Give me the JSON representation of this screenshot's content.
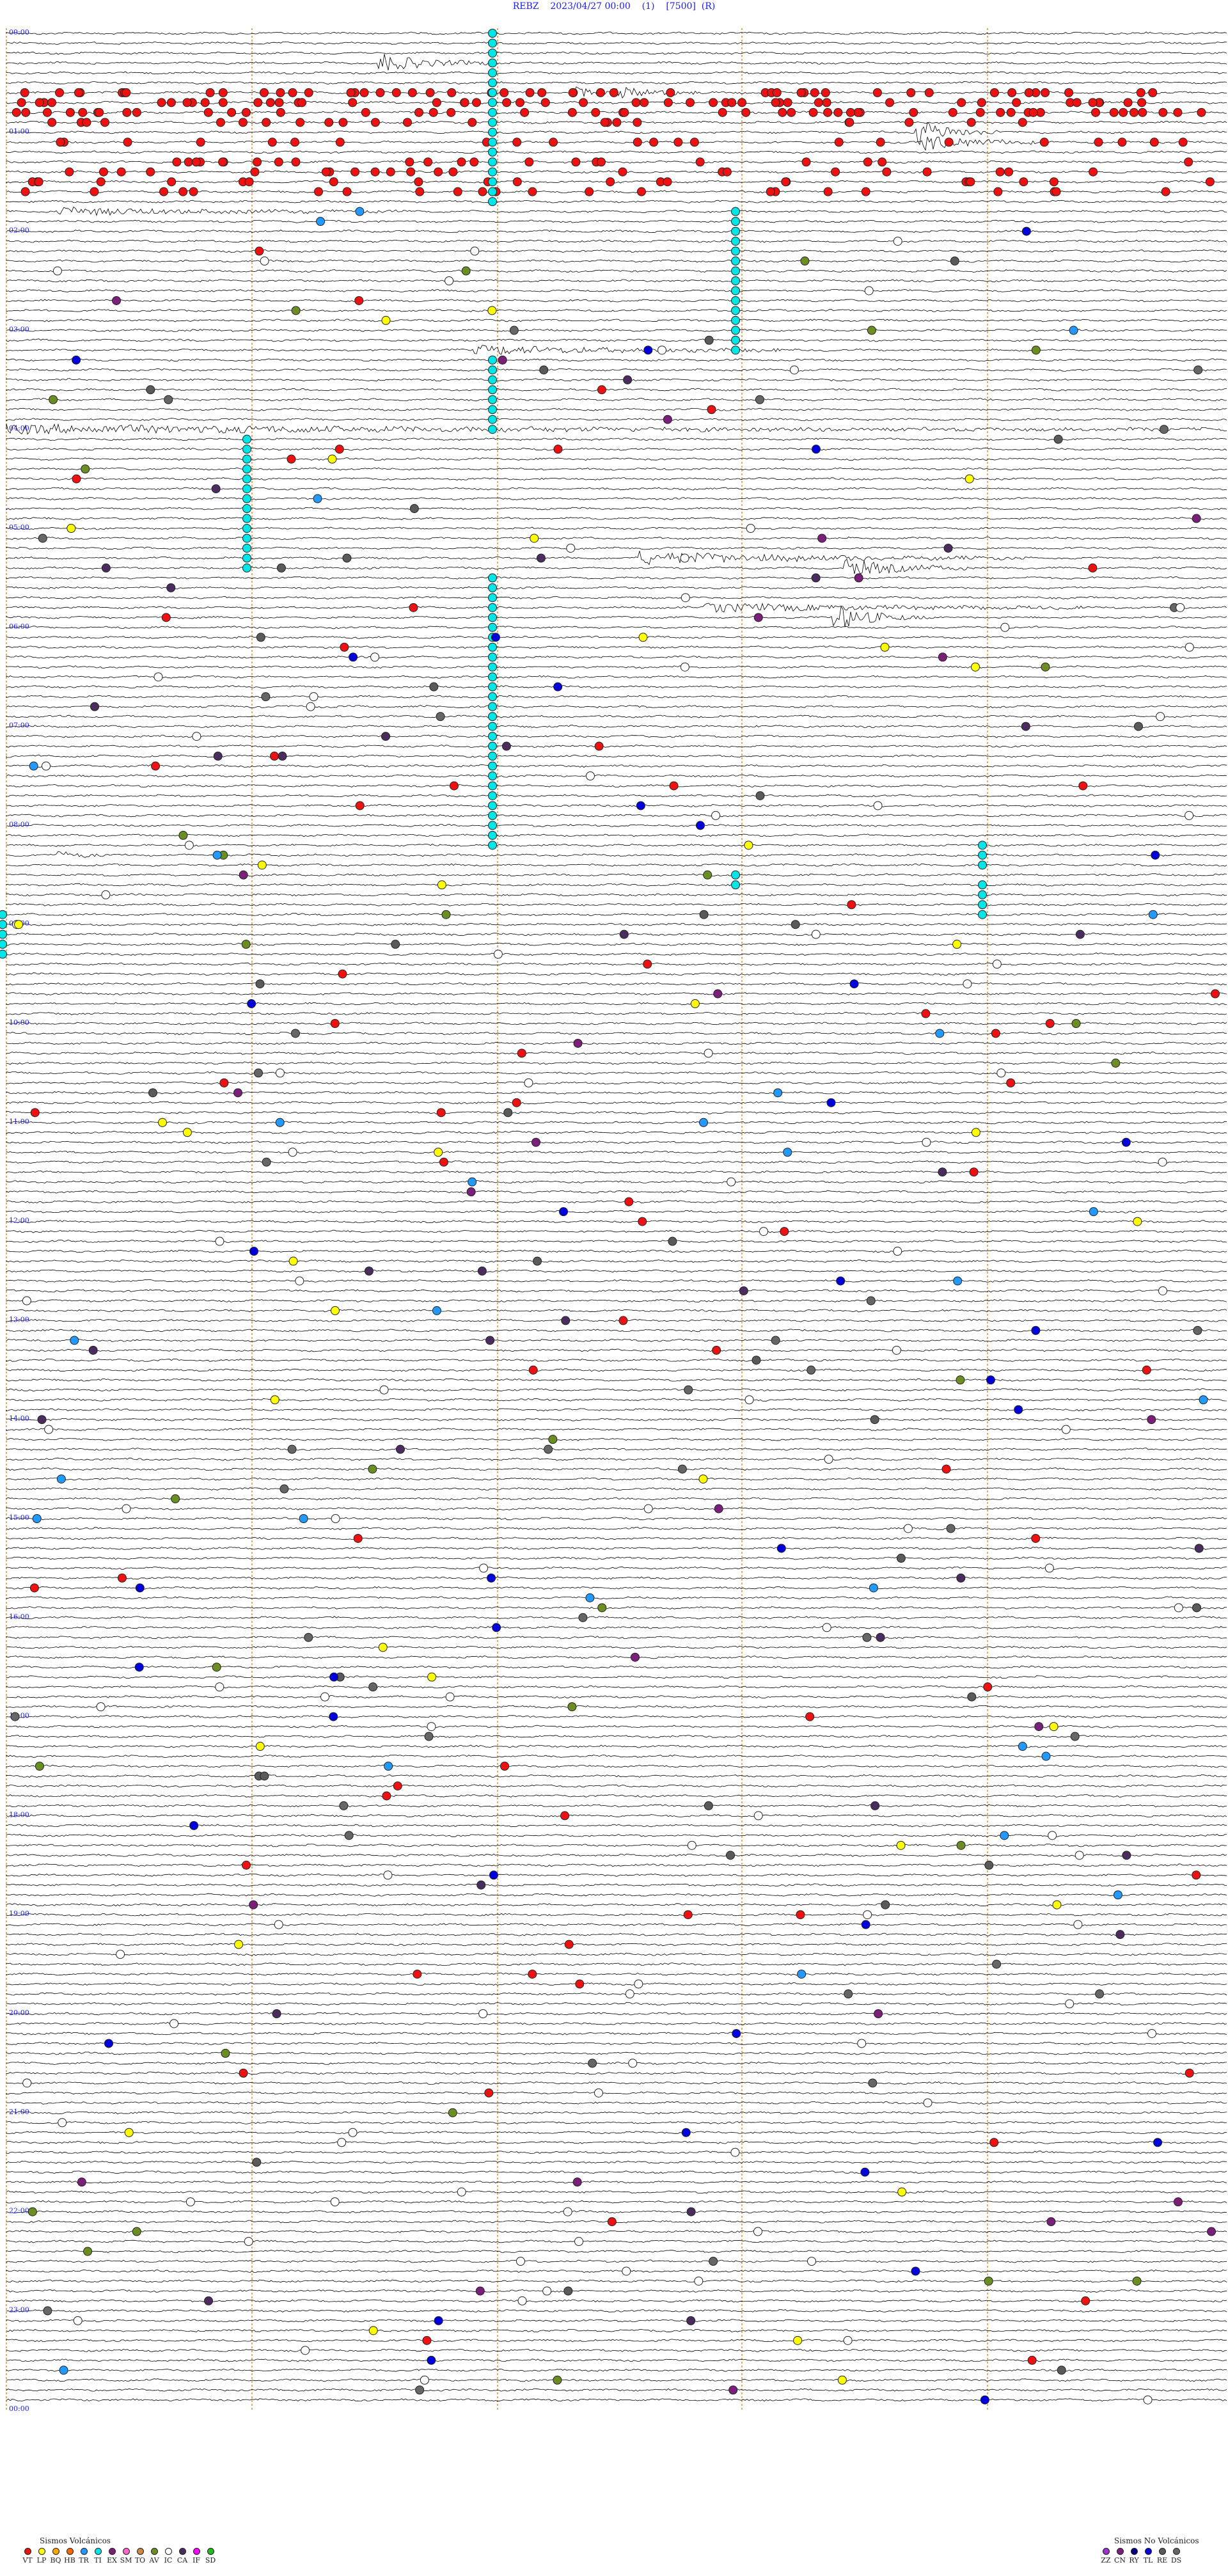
{
  "header": {
    "station": "REBZ",
    "datetime": "2023/04/27 00:00",
    "channel_index": "(1)",
    "scale": "[7500]",
    "component": "(R)"
  },
  "chart_data": {
    "type": "helicorder",
    "hours": [
      "00:00",
      "01:00",
      "02:00",
      "03:00",
      "04:00",
      "05:00",
      "06:00",
      "07:00",
      "08:00",
      "09:00",
      "10:00",
      "11:00",
      "12:00",
      "13:00",
      "14:00",
      "15:00",
      "16:00",
      "17:00",
      "18:00",
      "19:00",
      "20:00",
      "21:00",
      "22:00",
      "23:00",
      "00:00"
    ],
    "colors": {
      "trace": "#000000",
      "hour_label": "#1a1aff",
      "minute_marker": "#d9822b",
      "marker_stroke": "#222222"
    },
    "event_colors": {
      "VT": "#ee1111",
      "LP": "#ffff00",
      "BQ": "#ffa500",
      "HB": "#ff6600",
      "TR": "#2299ff",
      "TI": "#00e5e5",
      "EX": "#7a1f7a",
      "SM": "#ff66cc",
      "TO": "#cc8844",
      "AV": "#6b8e23",
      "IC": "#ffffff",
      "CA": "#4b2c5e",
      "IF": "#ff00ff",
      "SD": "#22bb22",
      "ZZ": "#9933cc",
      "CN": "#7a1f7a",
      "RY": "#000080",
      "TL": "#0000dd",
      "RE": "#5a5a5a",
      "DS": "#666666"
    }
  },
  "legend": {
    "volcanic_title": "Sismos Volcánicos",
    "volcanic": [
      {
        "code": "VT",
        "color": "#ee1111"
      },
      {
        "code": "LP",
        "color": "#ffff00"
      },
      {
        "code": "BQ",
        "color": "#ffa500"
      },
      {
        "code": "HB",
        "color": "#ff6600"
      },
      {
        "code": "TR",
        "color": "#2299ff"
      },
      {
        "code": "TI",
        "color": "#00e5e5"
      },
      {
        "code": "EX",
        "color": "#7a1f7a"
      },
      {
        "code": "SM",
        "color": "#ff66cc"
      },
      {
        "code": "TO",
        "color": "#cc8844"
      },
      {
        "code": "AV",
        "color": "#6b8e23"
      },
      {
        "code": "IC",
        "color": "#ffffff"
      },
      {
        "code": "CA",
        "color": "#4b2c5e"
      },
      {
        "code": "IF",
        "color": "#ff00ff"
      },
      {
        "code": "SD",
        "color": "#22bb22"
      }
    ],
    "non_volcanic_title": "Sismos No Volcánicos",
    "non_volcanic": [
      {
        "code": "ZZ",
        "color": "#9933cc"
      },
      {
        "code": "CN",
        "color": "#7a1f7a"
      },
      {
        "code": "RY",
        "color": "#000080"
      },
      {
        "code": "TL",
        "color": "#0000dd"
      },
      {
        "code": "RE",
        "color": "#5a5a5a"
      },
      {
        "code": "DS",
        "color": "#666666"
      }
    ]
  }
}
